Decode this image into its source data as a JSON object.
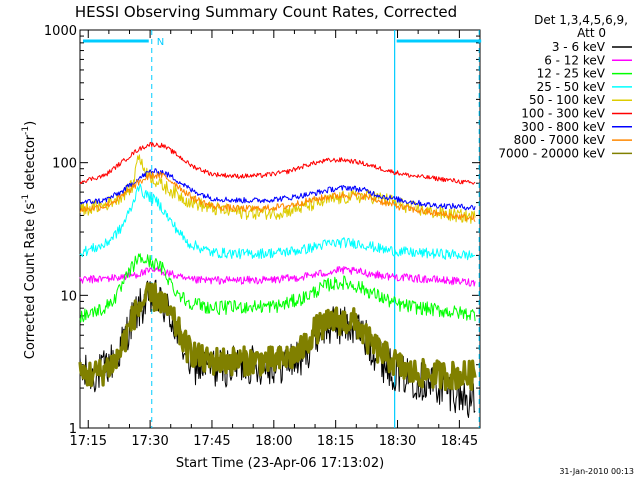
{
  "chart_data": {
    "type": "line",
    "title": "HESSI Observing Summary Count Rates, Corrected",
    "xlabel": "Start Time (23-Apr-06 17:13:02)",
    "ylabel_main": "Corrected Count Rate (s",
    "ylabel_sup1": "-1",
    "ylabel_mid": " detector",
    "ylabel_sup2": "-1",
    "ylabel_end": ")",
    "xlim_minutes": [
      0,
      97
    ],
    "ylim": [
      1,
      1000
    ],
    "y_scale": "log",
    "x_ticks": [
      {
        "t": 2,
        "label": "17:15"
      },
      {
        "t": 17,
        "label": "17:30"
      },
      {
        "t": 32,
        "label": "17:45"
      },
      {
        "t": 47,
        "label": "18:00"
      },
      {
        "t": 62,
        "label": "18:15"
      },
      {
        "t": 77,
        "label": "18:30"
      },
      {
        "t": 92,
        "label": "18:45"
      }
    ],
    "y_ticks": [
      {
        "v": 1,
        "label": "1"
      },
      {
        "v": 10,
        "label": "10"
      },
      {
        "v": 100,
        "label": "100"
      },
      {
        "v": 1000,
        "label": "1000"
      }
    ],
    "legend_header": [
      "Det 1,3,4,5,6,9,",
      "Att 0"
    ],
    "legend_placement": "right",
    "series": [
      {
        "name": "3 - 6 keV",
        "color": "#000000",
        "points": [
          [
            0,
            2.5
          ],
          [
            5,
            2.6
          ],
          [
            9,
            3.5
          ],
          [
            13,
            7.0
          ],
          [
            16,
            9.0
          ],
          [
            18,
            9.5
          ],
          [
            21,
            8.0
          ],
          [
            24,
            5.0
          ],
          [
            27,
            3.0
          ],
          [
            32,
            2.8
          ],
          [
            40,
            3.0
          ],
          [
            48,
            3.0
          ],
          [
            54,
            3.4
          ],
          [
            58,
            5.5
          ],
          [
            63,
            6.0
          ],
          [
            67,
            5.8
          ],
          [
            71,
            4.0
          ],
          [
            74,
            3.0
          ],
          [
            77,
            2.6
          ],
          [
            82,
            2.3
          ],
          [
            88,
            2.0
          ],
          [
            92,
            1.8
          ],
          [
            95,
            1.6
          ]
        ]
      },
      {
        "name": "6 - 12 keV",
        "color": "#ff00ff",
        "points": [
          [
            0,
            13
          ],
          [
            8,
            13.5
          ],
          [
            12,
            14
          ],
          [
            16,
            15
          ],
          [
            19,
            15.5
          ],
          [
            22,
            14.5
          ],
          [
            26,
            13
          ],
          [
            35,
            13
          ],
          [
            45,
            13
          ],
          [
            52,
            13.5
          ],
          [
            58,
            14.5
          ],
          [
            63,
            15.5
          ],
          [
            68,
            15
          ],
          [
            74,
            14
          ],
          [
            80,
            13.5
          ],
          [
            88,
            13
          ],
          [
            95,
            12.5
          ]
        ]
      },
      {
        "name": "12 - 25 keV",
        "color": "#00ff00",
        "points": [
          [
            0,
            7
          ],
          [
            6,
            8
          ],
          [
            9,
            10
          ],
          [
            12,
            15
          ],
          [
            14,
            19
          ],
          [
            17,
            18
          ],
          [
            20,
            16
          ],
          [
            23,
            11
          ],
          [
            26,
            9
          ],
          [
            32,
            8
          ],
          [
            40,
            8.2
          ],
          [
            48,
            8.3
          ],
          [
            54,
            9.5
          ],
          [
            60,
            12
          ],
          [
            64,
            12.5
          ],
          [
            68,
            11.5
          ],
          [
            72,
            10
          ],
          [
            77,
            8.5
          ],
          [
            83,
            8
          ],
          [
            90,
            7.5
          ],
          [
            95,
            7.2
          ]
        ]
      },
      {
        "name": "25 - 50 keV",
        "color": "#00ffff",
        "points": [
          [
            0,
            21
          ],
          [
            6,
            24
          ],
          [
            10,
            32
          ],
          [
            13,
            50
          ],
          [
            14,
            68
          ],
          [
            15,
            60
          ],
          [
            17,
            55
          ],
          [
            19,
            50
          ],
          [
            22,
            36
          ],
          [
            26,
            25
          ],
          [
            32,
            21
          ],
          [
            40,
            20.5
          ],
          [
            48,
            21
          ],
          [
            54,
            22
          ],
          [
            60,
            24.5
          ],
          [
            64,
            25
          ],
          [
            68,
            24.5
          ],
          [
            74,
            22
          ],
          [
            80,
            21
          ],
          [
            88,
            20.5
          ],
          [
            95,
            20
          ]
        ]
      },
      {
        "name": "50 - 100 keV",
        "color": "#ddcc00",
        "points": [
          [
            0,
            44
          ],
          [
            6,
            48
          ],
          [
            10,
            56
          ],
          [
            13,
            68
          ],
          [
            14,
            120
          ],
          [
            15,
            95
          ],
          [
            17,
            80
          ],
          [
            19,
            70
          ],
          [
            22,
            62
          ],
          [
            26,
            52
          ],
          [
            32,
            45
          ],
          [
            40,
            42
          ],
          [
            48,
            42
          ],
          [
            54,
            46
          ],
          [
            60,
            52
          ],
          [
            65,
            55
          ],
          [
            70,
            56
          ],
          [
            75,
            52
          ],
          [
            80,
            46
          ],
          [
            88,
            41
          ],
          [
            95,
            39
          ]
        ]
      },
      {
        "name": "100 - 300 keV",
        "color": "#ff0000",
        "points": [
          [
            0,
            72
          ],
          [
            6,
            80
          ],
          [
            10,
            100
          ],
          [
            14,
            125
          ],
          [
            17,
            138
          ],
          [
            20,
            135
          ],
          [
            23,
            118
          ],
          [
            27,
            95
          ],
          [
            32,
            82
          ],
          [
            38,
            79
          ],
          [
            44,
            80
          ],
          [
            50,
            85
          ],
          [
            56,
            98
          ],
          [
            60,
            104
          ],
          [
            64,
            105
          ],
          [
            68,
            100
          ],
          [
            72,
            92
          ],
          [
            76,
            85
          ],
          [
            80,
            80
          ],
          [
            88,
            75
          ],
          [
            95,
            70
          ]
        ]
      },
      {
        "name": "300 - 800 keV",
        "color": "#0000ff",
        "points": [
          [
            0,
            50
          ],
          [
            6,
            52
          ],
          [
            10,
            60
          ],
          [
            14,
            75
          ],
          [
            17,
            86
          ],
          [
            20,
            85
          ],
          [
            23,
            76
          ],
          [
            27,
            62
          ],
          [
            32,
            54
          ],
          [
            38,
            52
          ],
          [
            44,
            52
          ],
          [
            50,
            54
          ],
          [
            56,
            58
          ],
          [
            61,
            63
          ],
          [
            65,
            65
          ],
          [
            69,
            62
          ],
          [
            73,
            56
          ],
          [
            78,
            52
          ],
          [
            85,
            48
          ],
          [
            95,
            46
          ]
        ]
      },
      {
        "name": "800 - 7000 keV",
        "color": "#ff8800",
        "points": [
          [
            0,
            44
          ],
          [
            6,
            47
          ],
          [
            10,
            55
          ],
          [
            14,
            70
          ],
          [
            17,
            80
          ],
          [
            20,
            80
          ],
          [
            23,
            70
          ],
          [
            27,
            55
          ],
          [
            32,
            47
          ],
          [
            38,
            45
          ],
          [
            44,
            45
          ],
          [
            50,
            47
          ],
          [
            56,
            52
          ],
          [
            61,
            56
          ],
          [
            65,
            57
          ],
          [
            69,
            56
          ],
          [
            73,
            51
          ],
          [
            78,
            46
          ],
          [
            85,
            42
          ],
          [
            95,
            38
          ]
        ]
      },
      {
        "name": "7000 - 20000 keV",
        "color": "#808000",
        "points": [
          [
            0,
            2.5
          ],
          [
            5,
            2.6
          ],
          [
            9,
            3.3
          ],
          [
            13,
            7
          ],
          [
            16,
            9.5
          ],
          [
            19,
            9.7
          ],
          [
            22,
            7
          ],
          [
            26,
            4
          ],
          [
            30,
            3.2
          ],
          [
            40,
            3.2
          ],
          [
            48,
            3.2
          ],
          [
            53,
            3.6
          ],
          [
            57,
            5.5
          ],
          [
            62,
            6.5
          ],
          [
            67,
            6.2
          ],
          [
            70,
            4.5
          ],
          [
            74,
            3.5
          ],
          [
            80,
            2.6
          ],
          [
            88,
            2.5
          ],
          [
            95,
            2.5
          ]
        ]
      }
    ],
    "annotations": {
      "attenuator_bar_label": "N",
      "vertical_markers_minutes": [
        17.4,
        76.3,
        96.8
      ]
    }
  },
  "footer": {
    "timestamp": "31-Jan-2010 00:13"
  }
}
